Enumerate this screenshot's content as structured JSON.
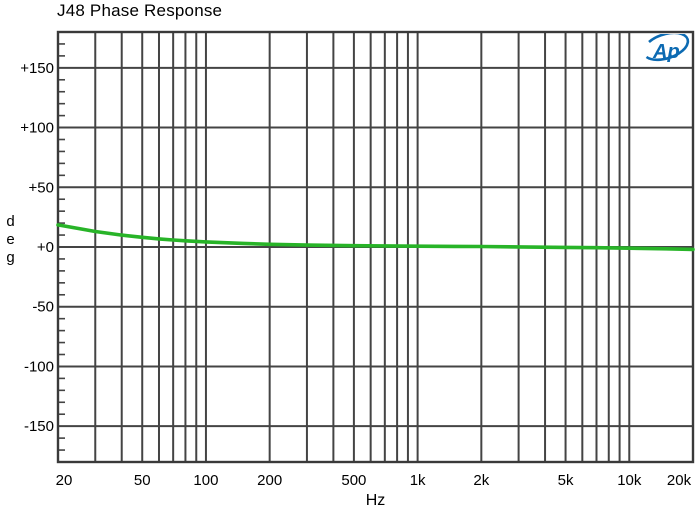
{
  "title": "J48 Phase Response",
  "logo": {
    "text": "Ap",
    "color": "#0c6ab2"
  },
  "colors": {
    "background": "#ffffff",
    "grid": "#444444",
    "border": "#3a3a3a",
    "text": "#000000",
    "trace": "#28b428",
    "logo_blue": "#0c6ab2"
  },
  "axes": {
    "x_tick_labels": [
      "20",
      "50",
      "100",
      "200",
      "500",
      "1k",
      "2k",
      "5k",
      "10k",
      "20k"
    ],
    "x_tick_values": [
      20,
      50,
      100,
      200,
      500,
      1000,
      2000,
      5000,
      10000,
      20000
    ],
    "x_grid_values": [
      20,
      30,
      40,
      50,
      60,
      70,
      80,
      90,
      100,
      200,
      300,
      400,
      500,
      600,
      700,
      800,
      900,
      1000,
      2000,
      3000,
      4000,
      5000,
      6000,
      7000,
      8000,
      9000,
      10000,
      20000
    ],
    "y_tick_labels": [
      "+150",
      "+100",
      "+50",
      "+0",
      "-50",
      "-100",
      "-150"
    ],
    "y_tick_values": [
      150,
      100,
      50,
      0,
      -50,
      -100,
      -150
    ],
    "y_minor_step": 10
  },
  "chart_data": {
    "type": "line",
    "title": "J48 Phase Response",
    "xlabel": "Hz",
    "ylabel": "deg",
    "x_scale": "log",
    "xlim": [
      20,
      20000
    ],
    "ylim": [
      -180,
      180
    ],
    "grid": true,
    "legend": "none",
    "series": [
      {
        "name": "J48 phase",
        "color": "#28b428",
        "x": [
          20,
          25,
          30,
          40,
          50,
          60,
          70,
          80,
          100,
          150,
          200,
          300,
          500,
          700,
          1000,
          1500,
          2000,
          3000,
          5000,
          7000,
          10000,
          15000,
          20000
        ],
        "y": [
          18.5,
          15.5,
          13.0,
          10.0,
          8.1,
          6.8,
          5.9,
          5.2,
          4.3,
          3.0,
          2.3,
          1.6,
          1.1,
          0.9,
          0.7,
          0.5,
          0.4,
          0.1,
          -0.3,
          -0.6,
          -1.0,
          -1.5,
          -2.0
        ]
      }
    ]
  }
}
